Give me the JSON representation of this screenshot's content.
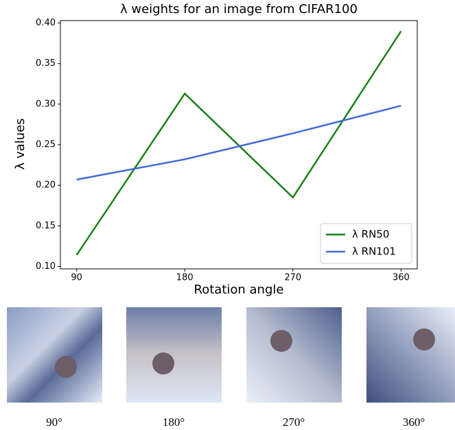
{
  "chart_data": {
    "type": "line",
    "title": "λ weights for an image from CIFAR100",
    "x_label": "Rotation angle",
    "y_label": "λ values",
    "x": [
      90,
      180,
      270,
      360
    ],
    "xlim": [
      76.5,
      373.5
    ],
    "xticks": [
      90,
      180,
      270,
      360
    ],
    "ylim": [
      0.097,
      0.403
    ],
    "yticks": [
      {
        "value": 0.1,
        "label": "0.10"
      },
      0.15,
      {
        "value": 0.2,
        "label": "0.20"
      },
      0.25,
      {
        "value": 0.3,
        "label": "0.30"
      },
      0.35,
      {
        "value": 0.4,
        "label": "0.40"
      }
    ],
    "legend": "lower right",
    "series": [
      {
        "name": "λ RN50",
        "color": "#1a7f1a",
        "values": [
          0.114,
          0.313,
          0.185,
          0.39
        ]
      },
      {
        "name": "λ RN101",
        "color": "#4169d6",
        "values": [
          0.207,
          0.232,
          0.264,
          0.298
        ]
      }
    ]
  },
  "image_captions": [
    "90°",
    "180°",
    "270°",
    "360°"
  ]
}
